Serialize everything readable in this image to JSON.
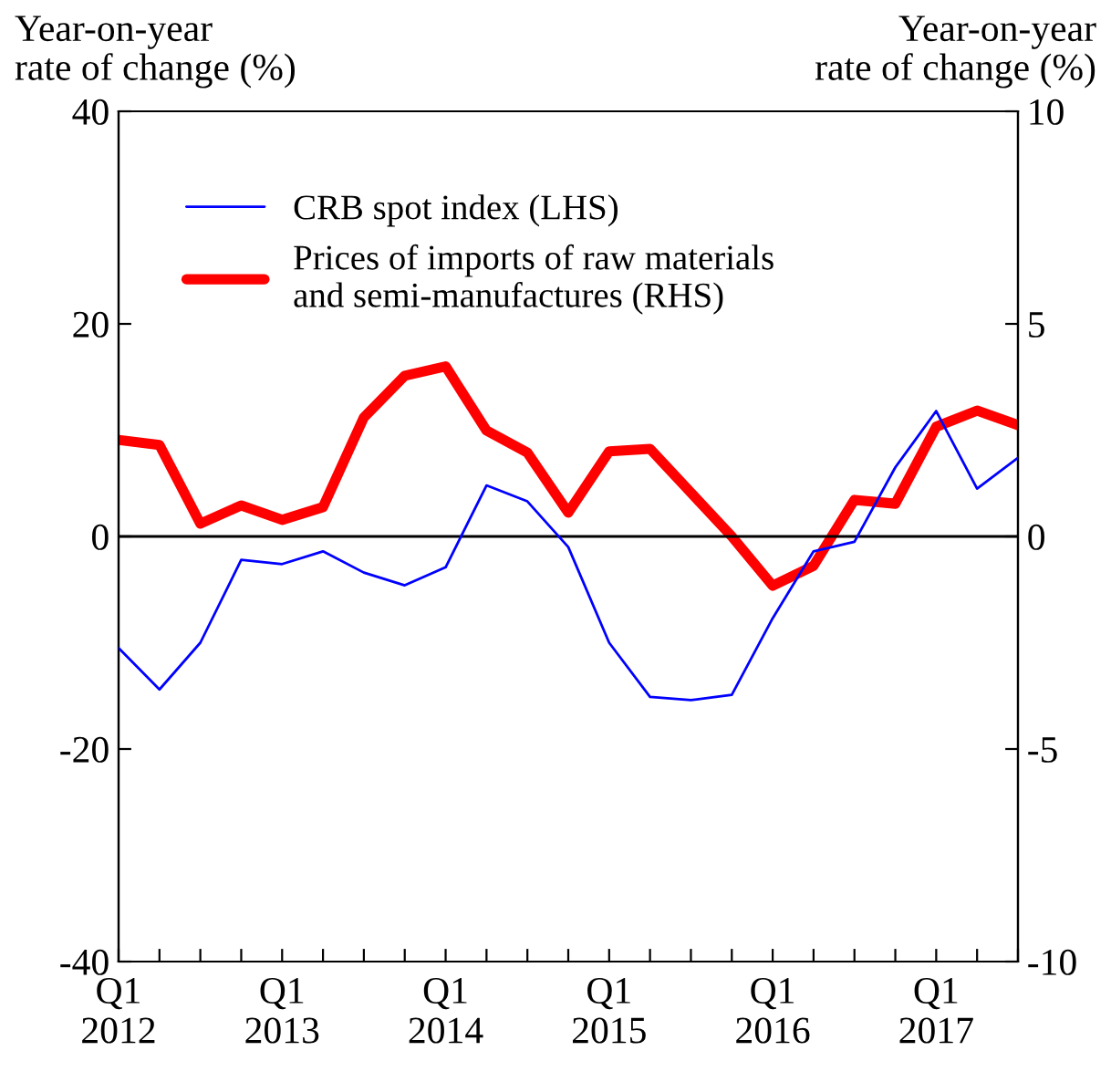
{
  "chart_data": {
    "type": "line",
    "ylabel": "Year-on-year\nrate of change (%)",
    "y2label": "Year-on-year\nrate of change (%)",
    "categories": [
      "Q1\n2012",
      null,
      null,
      null,
      "Q1\n2013",
      null,
      null,
      null,
      "Q1\n2014",
      null,
      null,
      null,
      "Q1\n2015",
      null,
      null,
      null,
      "Q1\n2016",
      null,
      null,
      null,
      "Q1\n2017",
      null,
      null
    ],
    "series": [
      {
        "name": "CRB spot index (LHS)",
        "color": "#0000ff",
        "axis": "y",
        "values": [
          -10.5,
          -14.4,
          -10,
          -2.2,
          -2.6,
          -1.4,
          -3.4,
          -4.6,
          -2.9,
          4.8,
          3.3,
          -1.0,
          -10,
          -15.1,
          -15.4,
          -14.9,
          -7.7,
          -1.4,
          -0.5,
          6.5,
          11.8,
          4.5,
          7.4
        ]
      },
      {
        "name": "Prices of imports of raw materials\nand semi-manufactures (RHS)",
        "color": "#ff0000",
        "axis": "y2",
        "values": [
          2.27,
          2.15,
          0.3,
          0.73,
          0.39,
          0.69,
          2.8,
          3.78,
          4.0,
          2.49,
          1.97,
          0.56,
          2.0,
          2.06,
          1.03,
          0,
          -1.16,
          -0.69,
          0.86,
          0.77,
          2.58,
          2.96,
          2.62
        ]
      }
    ],
    "ylim": [
      -40,
      40
    ],
    "yticks": [
      -40,
      -20,
      0,
      20,
      40
    ],
    "y2lim": [
      -10,
      10
    ],
    "y2ticks": [
      -10,
      -5,
      0,
      5,
      10
    ],
    "ref_lines": [
      {
        "axis": "y",
        "value": 0,
        "color": "#000000"
      }
    ],
    "legend": "top left",
    "grid": false
  }
}
